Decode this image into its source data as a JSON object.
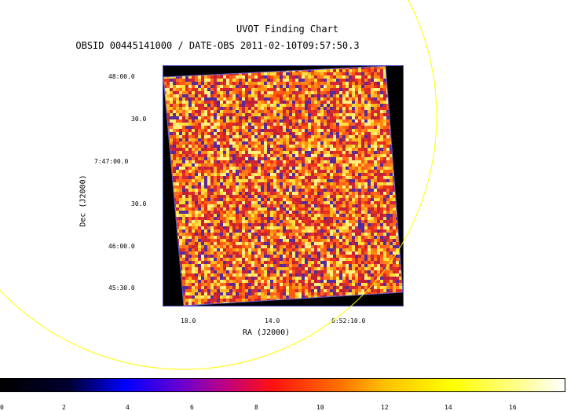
{
  "chart": {
    "title": "UVOT Finding Chart",
    "subtitle": "OBSID 00445141000 / DATE-OBS 2011-02-10T09:57:50.3",
    "xlabel": "RA (J2000)",
    "ylabel": "Dec (J2000)",
    "x_ticks": [
      "18.0",
      "14.0",
      "0:52:10.0"
    ],
    "y_ticks": [
      "48:00.0",
      "30.0",
      "7:47:00.0",
      "30.0",
      "46:00.0",
      "45:30.0"
    ]
  },
  "colorbar": {
    "ticks": [
      "0",
      "2",
      "4",
      "6",
      "8",
      "10",
      "12",
      "14",
      "16"
    ],
    "range": [
      0,
      17.5
    ],
    "colors": [
      "#000000",
      "#0000ff",
      "#c00080",
      "#ff1010",
      "#ff7000",
      "#ffff00",
      "#ffffff"
    ]
  },
  "overlay": {
    "circle_color": "#ffff00",
    "frame_color": "#5050c8"
  }
}
